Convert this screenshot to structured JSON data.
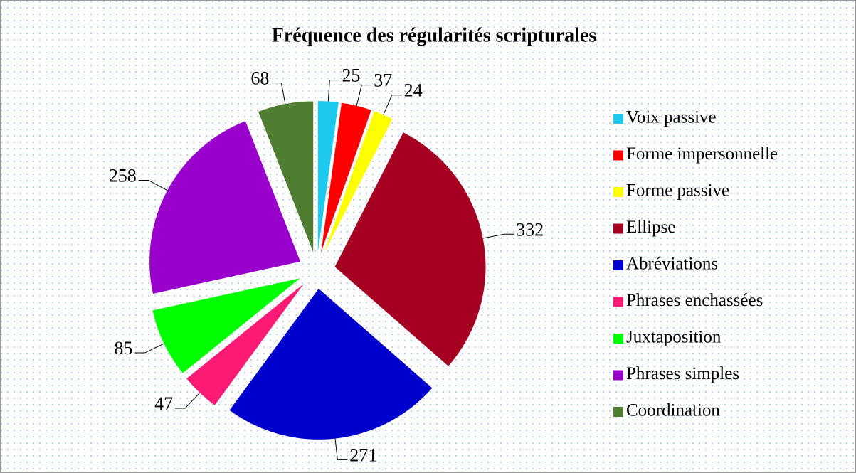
{
  "chart_data": {
    "type": "pie",
    "title": "Fréquence des régularités scripturales",
    "categories": [
      "Voix passive",
      "Forme impersonnelle",
      "Forme passive",
      "Ellipse",
      "Abréviations",
      "Phrases enchassées",
      "Juxtaposition",
      "Phrases simples",
      "Coordination"
    ],
    "values": [
      25,
      37,
      24,
      332,
      271,
      47,
      85,
      258,
      68
    ],
    "colors": [
      "#1ec9f0",
      "#ff0000",
      "#ffff00",
      "#a50021",
      "#0000cc",
      "#ff1a75",
      "#00ff00",
      "#9900cc",
      "#4f7d31"
    ],
    "legend": "right"
  }
}
